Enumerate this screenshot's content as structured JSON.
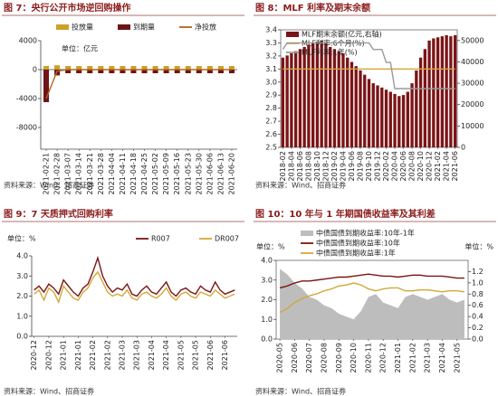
{
  "chart_data": [
    {
      "type": "bar",
      "title": "图 7：央行公开市场逆回购操作",
      "source": "资料来源：Wind、招商证券",
      "unit": "单位：亿元",
      "categories": [
        "2021-02-21",
        "2021-02-28",
        "2021-03-07",
        "2021-03-14",
        "2021-03-21",
        "2021-03-28",
        "2021-04-04",
        "2021-04-11",
        "2021-04-18",
        "2021-04-25",
        "2021-05-02",
        "2021-05-09",
        "2021-05-16",
        "2021-05-23",
        "2021-05-30",
        "2021-06-06",
        "2021-06-13",
        "2021-06-20"
      ],
      "series": [
        {
          "name": "投放量",
          "color": "#c9a227",
          "values": [
            500,
            600,
            500,
            500,
            500,
            500,
            500,
            500,
            500,
            500,
            500,
            500,
            500,
            500,
            500,
            500,
            500,
            500
          ]
        },
        {
          "name": "到期量",
          "color": "#6e1418",
          "values": [
            -4500,
            -800,
            -500,
            -500,
            -500,
            -500,
            -500,
            -500,
            -500,
            -500,
            -500,
            -500,
            -500,
            -500,
            -500,
            -500,
            -500,
            -500
          ]
        },
        {
          "name": "净投放",
          "color": "#b5651d",
          "type": "line",
          "values": [
            -4000,
            -200,
            0,
            0,
            0,
            0,
            0,
            0,
            0,
            0,
            0,
            0,
            0,
            0,
            0,
            0,
            0,
            0
          ]
        }
      ],
      "ylim": [
        -11000,
        4000
      ],
      "yticks": [
        4000,
        0,
        -4000,
        -8000
      ]
    },
    {
      "type": "bar",
      "title": "图 8：MLF 利率及期末余额",
      "source": "资料来源：Wind、招商证券",
      "categories": [
        "2018-02",
        null,
        "2018-04",
        null,
        "2018-06",
        null,
        "2018-08",
        null,
        "2018-10",
        null,
        "2018-12",
        null,
        "2019-02",
        null,
        "2019-04",
        null,
        "2019-06",
        null,
        "2019-08",
        null,
        "2019-10",
        null,
        "2019-12",
        null,
        "2020-02",
        null,
        "2020-04",
        null,
        "2020-06",
        null,
        "2020-08",
        null,
        "2020-10",
        null,
        "2020-12",
        null,
        "2021-02",
        null,
        "2021-04",
        null,
        "2021-06"
      ],
      "series": [
        {
          "name": "MLF期末余额(亿元,右轴)",
          "color": "#7b1416",
          "axis": "y2",
          "values": [
            42000,
            43000,
            44000,
            45000,
            46000,
            47000,
            48000,
            49000,
            49500,
            50000,
            49000,
            47000,
            46000,
            45000,
            44000,
            42000,
            40000,
            38000,
            36000,
            34000,
            32000,
            30000,
            29000,
            28000,
            27000,
            26000,
            25000,
            24000,
            24500,
            26000,
            30000,
            36000,
            42000,
            46000,
            50000,
            51000,
            51500,
            52000,
            52500,
            52000,
            52500
          ]
        },
        {
          "name": "MLF利率:6个月(%)",
          "color": "#d4a73a",
          "type": "line",
          "values": [
            3.1,
            3.1,
            3.1,
            3.1,
            3.1,
            3.1,
            3.1,
            3.1,
            3.1,
            3.1,
            3.1,
            3.1,
            3.1,
            3.1,
            3.1,
            3.1,
            3.1,
            3.1,
            3.1,
            3.1,
            3.1,
            3.1,
            3.1,
            3.1,
            3.1,
            3.1,
            3.1,
            3.1,
            3.1,
            3.1,
            3.1,
            3.1,
            3.1,
            3.1,
            3.1,
            3.1,
            3.1,
            3.1,
            3.1,
            3.1,
            3.1
          ]
        },
        {
          "name": "MLF利率:1年(%)",
          "color": "#9a9a9a",
          "type": "line",
          "values": [
            3.25,
            3.3,
            3.3,
            3.3,
            3.3,
            3.3,
            3.3,
            3.3,
            3.3,
            3.3,
            3.3,
            3.3,
            3.3,
            3.3,
            3.3,
            3.3,
            3.3,
            3.3,
            3.3,
            3.3,
            3.3,
            3.25,
            3.25,
            3.25,
            3.15,
            3.15,
            2.95,
            2.95,
            2.95,
            2.95,
            2.95,
            2.95,
            2.95,
            2.95,
            2.95,
            2.95,
            2.95,
            2.95,
            2.95,
            2.95,
            2.95
          ]
        }
      ],
      "ylim": [
        2.5,
        3.4
      ],
      "yticks": [
        2.5,
        2.6,
        2.7,
        2.8,
        2.9,
        {
          "value": 3,
          "label": "3.0"
        },
        3.1,
        3.2,
        3.3,
        3.4
      ],
      "y2lim": [
        0,
        55000
      ],
      "y2ticks": [
        0,
        10000,
        20000,
        30000,
        40000,
        50000
      ]
    },
    {
      "type": "line",
      "title": "图 9：7 天质押式回购利率",
      "source": "资料来源：Wind、招商证券",
      "unit": "单位：%",
      "categories": [
        "2020-12",
        null,
        null,
        "2020-12",
        null,
        null,
        "2021-01",
        null,
        null,
        "2021-01",
        null,
        null,
        "2021-02",
        null,
        null,
        "2021-02",
        null,
        null,
        "2021-03",
        null,
        null,
        "2021-03",
        null,
        null,
        "2021-04",
        null,
        null,
        "2021-04",
        null,
        null,
        "2021-05",
        null,
        null,
        "2021-05",
        null,
        null,
        "2021-06",
        null,
        null,
        "2021-06",
        null,
        null
      ],
      "series": [
        {
          "name": "R007",
          "color": "#7b1416",
          "values": [
            2.3,
            2.5,
            2.2,
            2.6,
            2.4,
            2.1,
            2.8,
            2.5,
            2.2,
            2.0,
            2.4,
            2.6,
            3.2,
            3.9,
            3.0,
            2.5,
            2.2,
            2.4,
            2.3,
            2.6,
            2.1,
            2.0,
            2.3,
            2.5,
            2.2,
            2.1,
            2.4,
            2.7,
            2.2,
            2.0,
            2.3,
            2.4,
            2.2,
            2.1,
            2.5,
            2.3,
            2.2,
            2.7,
            2.3,
            2.1,
            2.2,
            2.3
          ]
        },
        {
          "name": "DR007",
          "color": "#d4a73a",
          "values": [
            2.1,
            2.3,
            1.8,
            2.4,
            2.2,
            1.7,
            2.5,
            2.2,
            1.9,
            1.8,
            2.2,
            2.4,
            2.9,
            3.2,
            2.7,
            2.2,
            2.0,
            2.1,
            2.0,
            2.3,
            1.9,
            1.8,
            2.1,
            2.2,
            2.0,
            1.9,
            2.1,
            2.4,
            2.0,
            1.8,
            2.1,
            2.2,
            2.0,
            1.9,
            2.2,
            2.1,
            2.0,
            2.3,
            2.1,
            1.9,
            2.0,
            2.1
          ]
        }
      ],
      "ylim": [
        0,
        4
      ],
      "yticks": [
        {
          "value": 0,
          "label": "0.0"
        },
        {
          "value": 1,
          "label": "1.0"
        },
        {
          "value": 2,
          "label": "2.0"
        },
        {
          "value": 3,
          "label": "3.0"
        },
        {
          "value": 4,
          "label": "4.0"
        }
      ]
    },
    {
      "type": "line",
      "title": "图 10：10 年与 1 年期国债收益率及其利差",
      "source": "资料来源：Wind、招商证券",
      "unit": "单位：%",
      "unit_right": "单位：%",
      "categories": [
        "2020-05",
        null,
        "2020-06",
        null,
        "2020-07",
        null,
        "2020-08",
        null,
        "2020-09",
        null,
        "2020-10",
        null,
        "2020-11",
        null,
        "2020-12",
        null,
        "2021-01",
        null,
        "2021-02",
        null,
        "2021-03",
        null,
        "2021-04",
        null,
        "2021-05",
        null
      ],
      "series": [
        {
          "name": "中债国债到期收益率:10年-1年",
          "color": "#bdbdbd",
          "type": "area",
          "axis": "y2",
          "values": [
            1.25,
            1.15,
            1.0,
            0.9,
            0.75,
            0.7,
            0.6,
            0.55,
            0.45,
            0.4,
            0.35,
            0.5,
            0.75,
            0.8,
            0.65,
            0.6,
            0.55,
            0.75,
            0.8,
            0.75,
            0.7,
            0.75,
            0.8,
            0.7,
            0.65,
            0.7
          ]
        },
        {
          "name": "中债国债到期收益率:10年",
          "color": "#7b1416",
          "values": [
            2.6,
            2.7,
            2.85,
            2.95,
            2.95,
            3.0,
            3.05,
            3.1,
            3.15,
            3.15,
            3.2,
            3.25,
            3.3,
            3.25,
            3.2,
            3.2,
            3.15,
            3.2,
            3.25,
            3.25,
            3.2,
            3.2,
            3.2,
            3.15,
            3.1,
            3.1
          ]
        },
        {
          "name": "中债国债到期收益率:1年",
          "color": "#d4a73a",
          "values": [
            1.35,
            1.55,
            1.85,
            2.05,
            2.2,
            2.3,
            2.45,
            2.55,
            2.7,
            2.75,
            2.85,
            2.75,
            2.55,
            2.45,
            2.55,
            2.6,
            2.6,
            2.45,
            2.45,
            2.5,
            2.5,
            2.45,
            2.4,
            2.45,
            2.45,
            2.4
          ]
        }
      ],
      "ylim": [
        0,
        4
      ],
      "yticks": [
        {
          "value": 0,
          "label": "0.0"
        },
        {
          "value": 1,
          "label": "1.0"
        },
        {
          "value": 2,
          "label": "2.0"
        },
        {
          "value": 3,
          "label": "3.0"
        },
        {
          "value": 4,
          "label": "4.0"
        }
      ],
      "y2lim": [
        0,
        1.4
      ],
      "y2ticks": [
        {
          "value": 0,
          "label": "0.0"
        },
        0.2,
        0.4,
        0.6,
        0.8,
        {
          "value": 1,
          "label": "1.0"
        },
        1.2
      ]
    }
  ]
}
